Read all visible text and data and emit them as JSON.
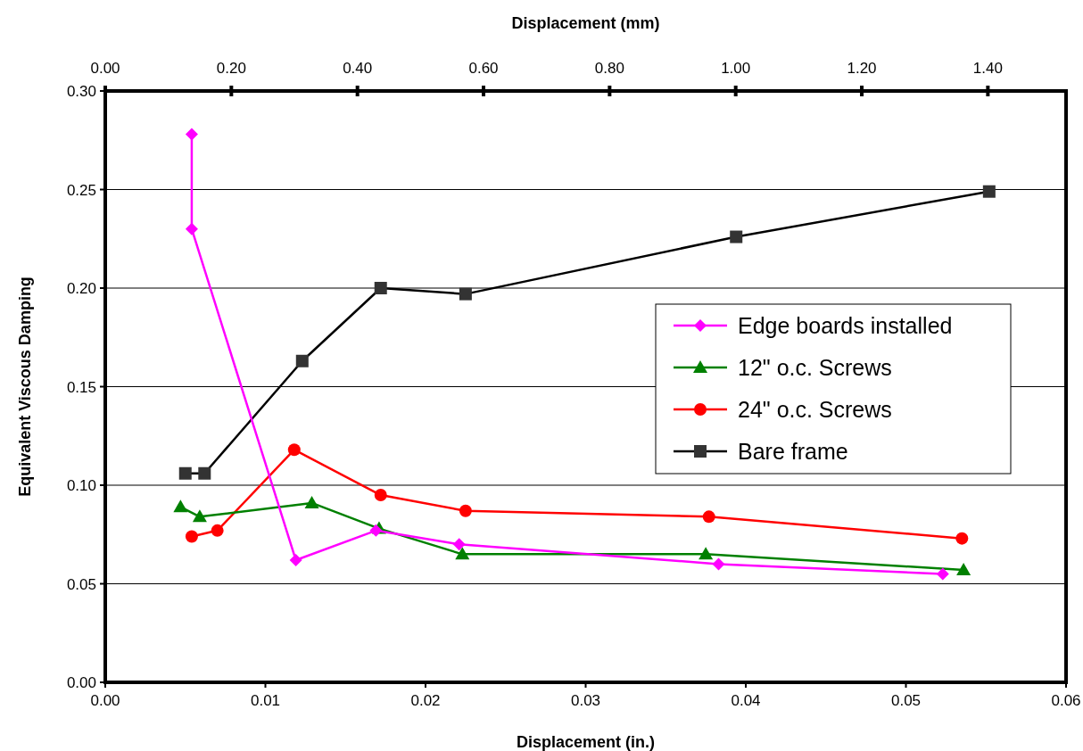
{
  "chart_data": {
    "type": "line",
    "xlabel": "Displacement (in.)",
    "x2label": "Displacement (mm)",
    "ylabel": "Equivalent Viscous Damping",
    "xlim": [
      0,
      0.06
    ],
    "xticks": [
      {
        "value": 0,
        "label": "0.00"
      },
      {
        "value": 0.01,
        "label": "0.01"
      },
      {
        "value": 0.02,
        "label": "0.02"
      },
      {
        "value": 0.03,
        "label": "0.03"
      },
      {
        "value": 0.04,
        "label": "0.04"
      },
      {
        "value": 0.05,
        "label": "0.05"
      },
      {
        "value": 0.06,
        "label": "0.06"
      }
    ],
    "x2lim": [
      0,
      1.524
    ],
    "x2ticks": [
      {
        "value": 0,
        "label": "0.00"
      },
      {
        "value": 0.2,
        "label": "0.20"
      },
      {
        "value": 0.4,
        "label": "0.40"
      },
      {
        "value": 0.6,
        "label": "0.60"
      },
      {
        "value": 0.8,
        "label": "0.80"
      },
      {
        "value": 1,
        "label": "1.00"
      },
      {
        "value": 1.2,
        "label": "1.20"
      },
      {
        "value": 1.4,
        "label": "1.40"
      }
    ],
    "ylim": [
      0,
      0.3
    ],
    "yticks": [
      {
        "value": 0,
        "label": "0.00"
      },
      {
        "value": 0.05,
        "label": "0.05"
      },
      {
        "value": 0.1,
        "label": "0.10"
      },
      {
        "value": 0.15,
        "label": "0.15"
      },
      {
        "value": 0.2,
        "label": "0.20"
      },
      {
        "value": 0.25,
        "label": "0.25"
      },
      {
        "value": 0.3,
        "label": "0.30"
      }
    ],
    "grid": "y",
    "legend": "right",
    "series": [
      {
        "name": "Edge boards installed",
        "color": "#ff00ff",
        "marker": "diamond",
        "x": [
          0.0054,
          0.0054,
          0.0119,
          0.0169,
          0.0221,
          0.0383,
          0.0523
        ],
        "values": [
          0.278,
          0.23,
          0.062,
          0.077,
          0.07,
          0.06,
          0.055
        ]
      },
      {
        "name": "12\" o.c. Screws",
        "color": "#008000",
        "marker": "triangle",
        "x": [
          0.0047,
          0.0059,
          0.0129,
          0.0171,
          0.0223,
          0.0375,
          0.0536
        ],
        "values": [
          0.089,
          0.084,
          0.091,
          0.078,
          0.065,
          0.065,
          0.057
        ]
      },
      {
        "name": "24\" o.c. Screws",
        "color": "#ff0000",
        "marker": "circle",
        "x": [
          0.0054,
          0.007,
          0.0118,
          0.0172,
          0.0225,
          0.0377,
          0.0535
        ],
        "values": [
          0.074,
          0.077,
          0.118,
          0.095,
          0.087,
          0.084,
          0.073
        ]
      },
      {
        "name": "Bare frame",
        "color": "#000000",
        "marker": "square",
        "x": [
          0.005,
          0.0062,
          0.0123,
          0.0172,
          0.0225,
          0.0394,
          0.0552
        ],
        "values": [
          0.106,
          0.106,
          0.163,
          0.2,
          0.197,
          0.226,
          0.249
        ]
      }
    ]
  }
}
